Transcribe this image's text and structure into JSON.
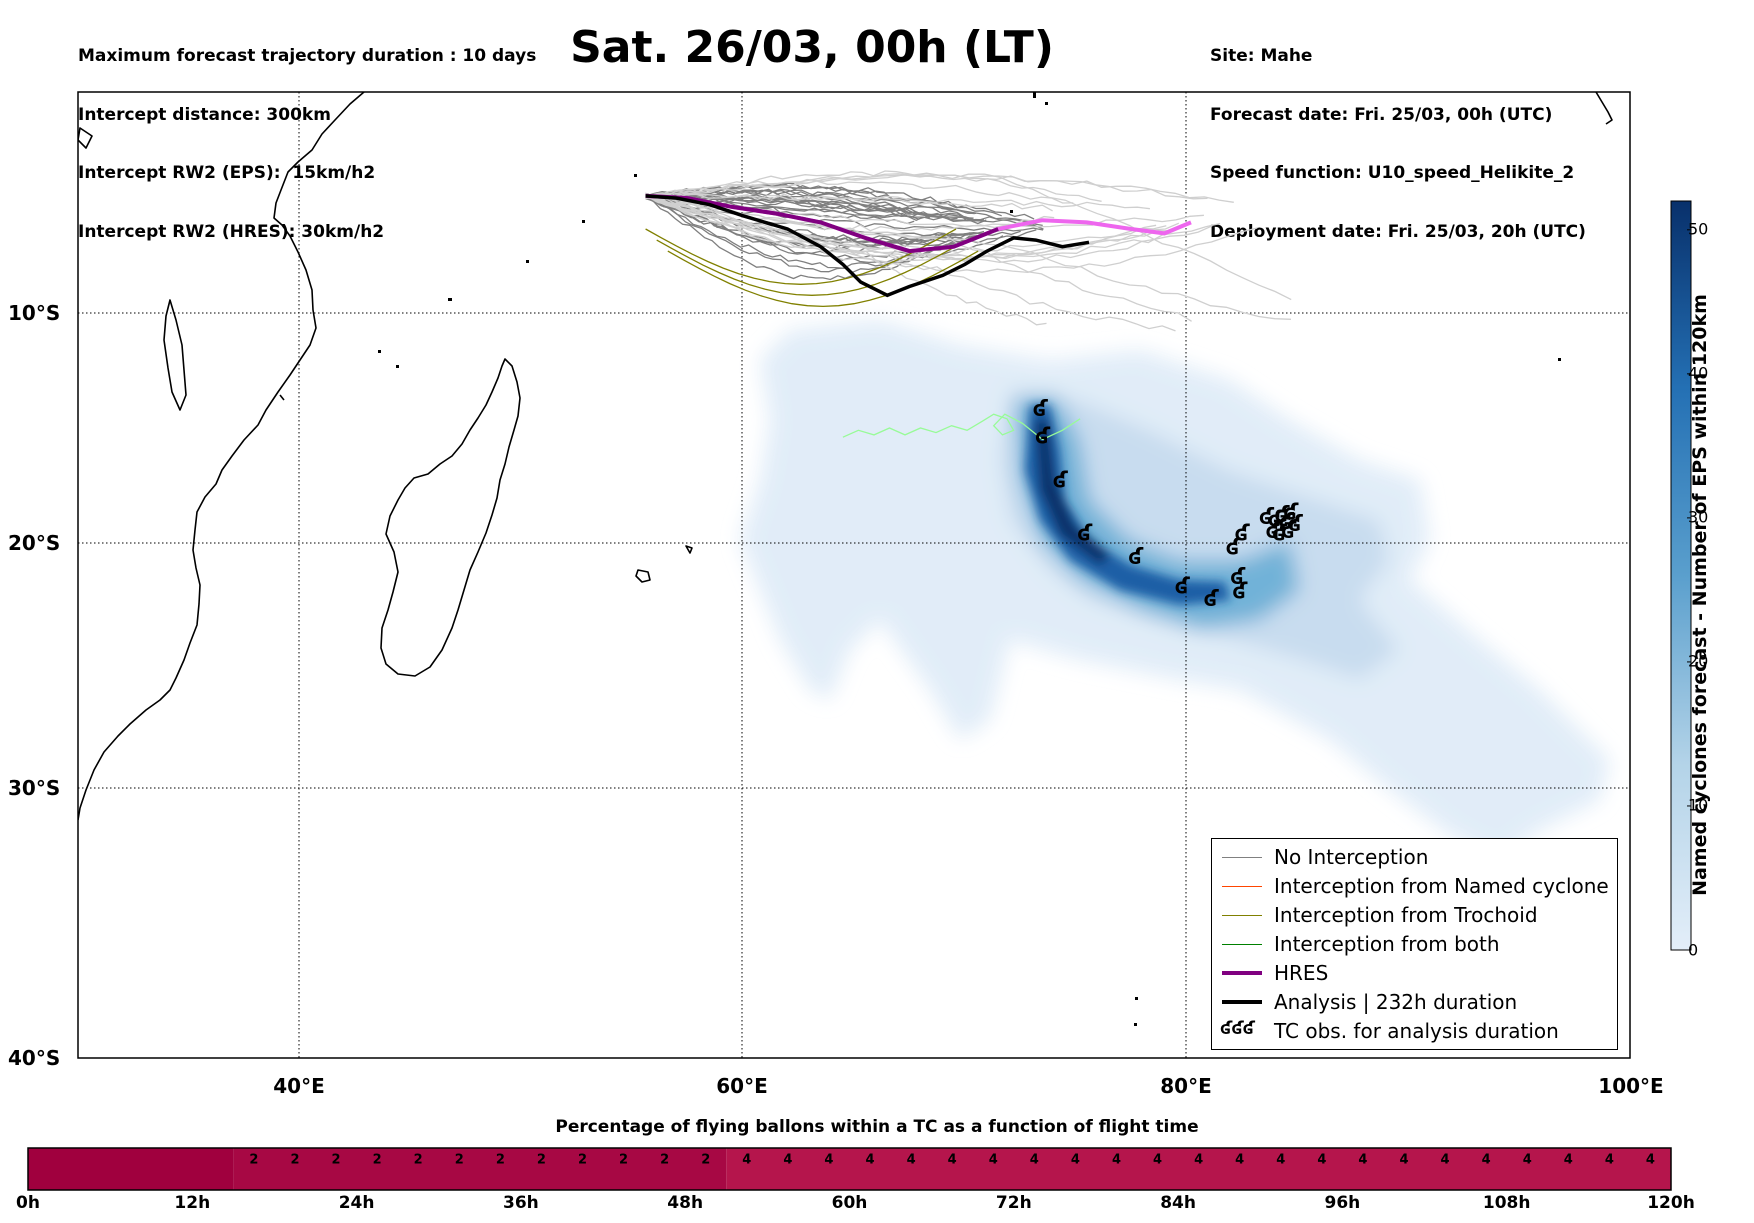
{
  "header": {
    "left_lines": [
      "Maximum forecast trajectory duration : 10 days",
      "Intercept distance: 300km",
      "Intercept RW2 (EPS):  15km/h2",
      "Intercept RW2 (HRES): 30km/h2"
    ],
    "title": "Sat. 26/03, 00h (LT)",
    "right_lines": [
      "Site: Mahe",
      "Forecast date: Fri. 25/03, 00h (UTC)",
      "Speed function: U10_speed_Helikite_2",
      "Deployment date: Fri. 25/03, 20h (UTC)"
    ]
  },
  "map": {
    "lon_range": [
      30,
      100
    ],
    "lat_range": [
      0,
      -40
    ],
    "lat_ticks": [
      {
        "value": -10,
        "label": "10°S"
      },
      {
        "value": -20,
        "label": "20°S"
      },
      {
        "value": -30,
        "label": "30°S"
      },
      {
        "value": -40,
        "label": "40°S"
      }
    ],
    "lon_ticks": [
      {
        "value": 40,
        "label": "40°E"
      },
      {
        "value": 60,
        "label": "60°E"
      },
      {
        "value": 80,
        "label": "80°E"
      },
      {
        "value": 100,
        "label": "100°E"
      }
    ],
    "grid": true,
    "tc_symbol": "ʛ",
    "tc_obs": [
      [
        73.4,
        -14.2
      ],
      [
        73.5,
        -15.4
      ],
      [
        74.3,
        -17.3
      ],
      [
        75.4,
        -19.6
      ],
      [
        77.7,
        -20.6
      ],
      [
        79.8,
        -21.8
      ],
      [
        81.1,
        -22.3
      ],
      [
        82.3,
        -21.4
      ],
      [
        82.4,
        -22.0
      ],
      [
        82.1,
        -20.2
      ],
      [
        82.5,
        -19.6
      ],
      [
        83.6,
        -18.9
      ],
      [
        84.0,
        -19.0
      ],
      [
        84.3,
        -18.8
      ],
      [
        84.5,
        -19.1
      ],
      [
        84.7,
        -18.7
      ],
      [
        84.2,
        -19.6
      ],
      [
        84.6,
        -19.5
      ],
      [
        84.9,
        -19.2
      ],
      [
        83.9,
        -19.5
      ]
    ],
    "hres_track": [
      [
        55.6,
        -4.7
      ],
      [
        57.5,
        -4.8
      ],
      [
        59.5,
        -5.2
      ],
      [
        61.5,
        -5.5
      ],
      [
        63.5,
        -5.9
      ],
      [
        65.5,
        -6.6
      ],
      [
        67.5,
        -7.2
      ],
      [
        69.5,
        -7.0
      ],
      [
        71.5,
        -6.2
      ],
      [
        73.5,
        -5.8
      ],
      [
        75.5,
        -5.9
      ],
      [
        77.5,
        -6.2
      ],
      [
        79.0,
        -6.4
      ],
      [
        80.2,
        -5.9
      ]
    ],
    "analysis_track": [
      [
        55.6,
        -4.7
      ],
      [
        57.0,
        -4.8
      ],
      [
        58.5,
        -5.1
      ],
      [
        60.0,
        -5.6
      ],
      [
        62.0,
        -6.2
      ],
      [
        63.5,
        -7.0
      ],
      [
        64.5,
        -7.8
      ],
      [
        65.3,
        -8.6
      ],
      [
        66.5,
        -9.2
      ],
      [
        67.5,
        -8.8
      ],
      [
        69.0,
        -8.3
      ],
      [
        70.0,
        -7.8
      ],
      [
        71.0,
        -7.2
      ],
      [
        72.2,
        -6.6
      ],
      [
        73.2,
        -6.7
      ],
      [
        74.4,
        -7.0
      ],
      [
        75.6,
        -6.8
      ]
    ],
    "trochoid_track": [
      [
        64.5,
        -15.4
      ],
      [
        65.2,
        -15.1
      ],
      [
        65.9,
        -15.3
      ],
      [
        66.6,
        -15.0
      ],
      [
        67.3,
        -15.3
      ],
      [
        68.0,
        -15.0
      ],
      [
        68.7,
        -15.2
      ],
      [
        69.4,
        -14.9
      ],
      [
        70.1,
        -15.1
      ],
      [
        70.8,
        -14.7
      ],
      [
        71.3,
        -14.4
      ],
      [
        71.9,
        -14.6
      ],
      [
        72.2,
        -15.1
      ],
      [
        71.7,
        -15.3
      ],
      [
        71.3,
        -14.9
      ],
      [
        71.8,
        -14.4
      ],
      [
        72.6,
        -14.8
      ],
      [
        73.5,
        -15.5
      ],
      [
        74.4,
        -15.1
      ],
      [
        75.2,
        -14.6
      ]
    ]
  },
  "colorbar": {
    "title": "Named cyclones forecast - Number of EPS within 120km",
    "ticks": [
      0,
      10,
      20,
      30,
      40,
      50
    ],
    "max": 52,
    "color_low": "#e3eef9",
    "color_high": "#08306b"
  },
  "legend": {
    "items": [
      {
        "label": "No Interception",
        "color": "#808080",
        "width": 1.5
      },
      {
        "label": "Interception from Named cyclone",
        "color": "#ff4500",
        "width": 1.5
      },
      {
        "label": "Interception from Trochoid",
        "color": "#808000",
        "width": 1.5
      },
      {
        "label": "Interception from both",
        "color": "#008000",
        "width": 1.5
      },
      {
        "label": "HRES",
        "color": "#800080",
        "width": 4
      },
      {
        "label": "Analysis | 232h duration",
        "color": "#000000",
        "width": 4
      },
      {
        "label": "TC obs. for analysis duration",
        "symbol": "ʛʛʛ"
      }
    ]
  },
  "timebar": {
    "title": "Percentage of flying ballons within a TC as a function of flight time",
    "tick_labels": [
      "0h",
      "12h",
      "24h",
      "36h",
      "48h",
      "60h",
      "72h",
      "84h",
      "96h",
      "108h",
      "120h"
    ],
    "hours_max": 120,
    "segments": [
      {
        "from_h": 0,
        "to_h": 15,
        "value": "",
        "color": "#a0003e"
      },
      {
        "from_h": 15,
        "to_h": 51,
        "value": "2",
        "color": "#a70844"
      },
      {
        "from_h": 51,
        "to_h": 120,
        "value": "4",
        "color": "#b5154c"
      }
    ],
    "step_h": 3
  }
}
